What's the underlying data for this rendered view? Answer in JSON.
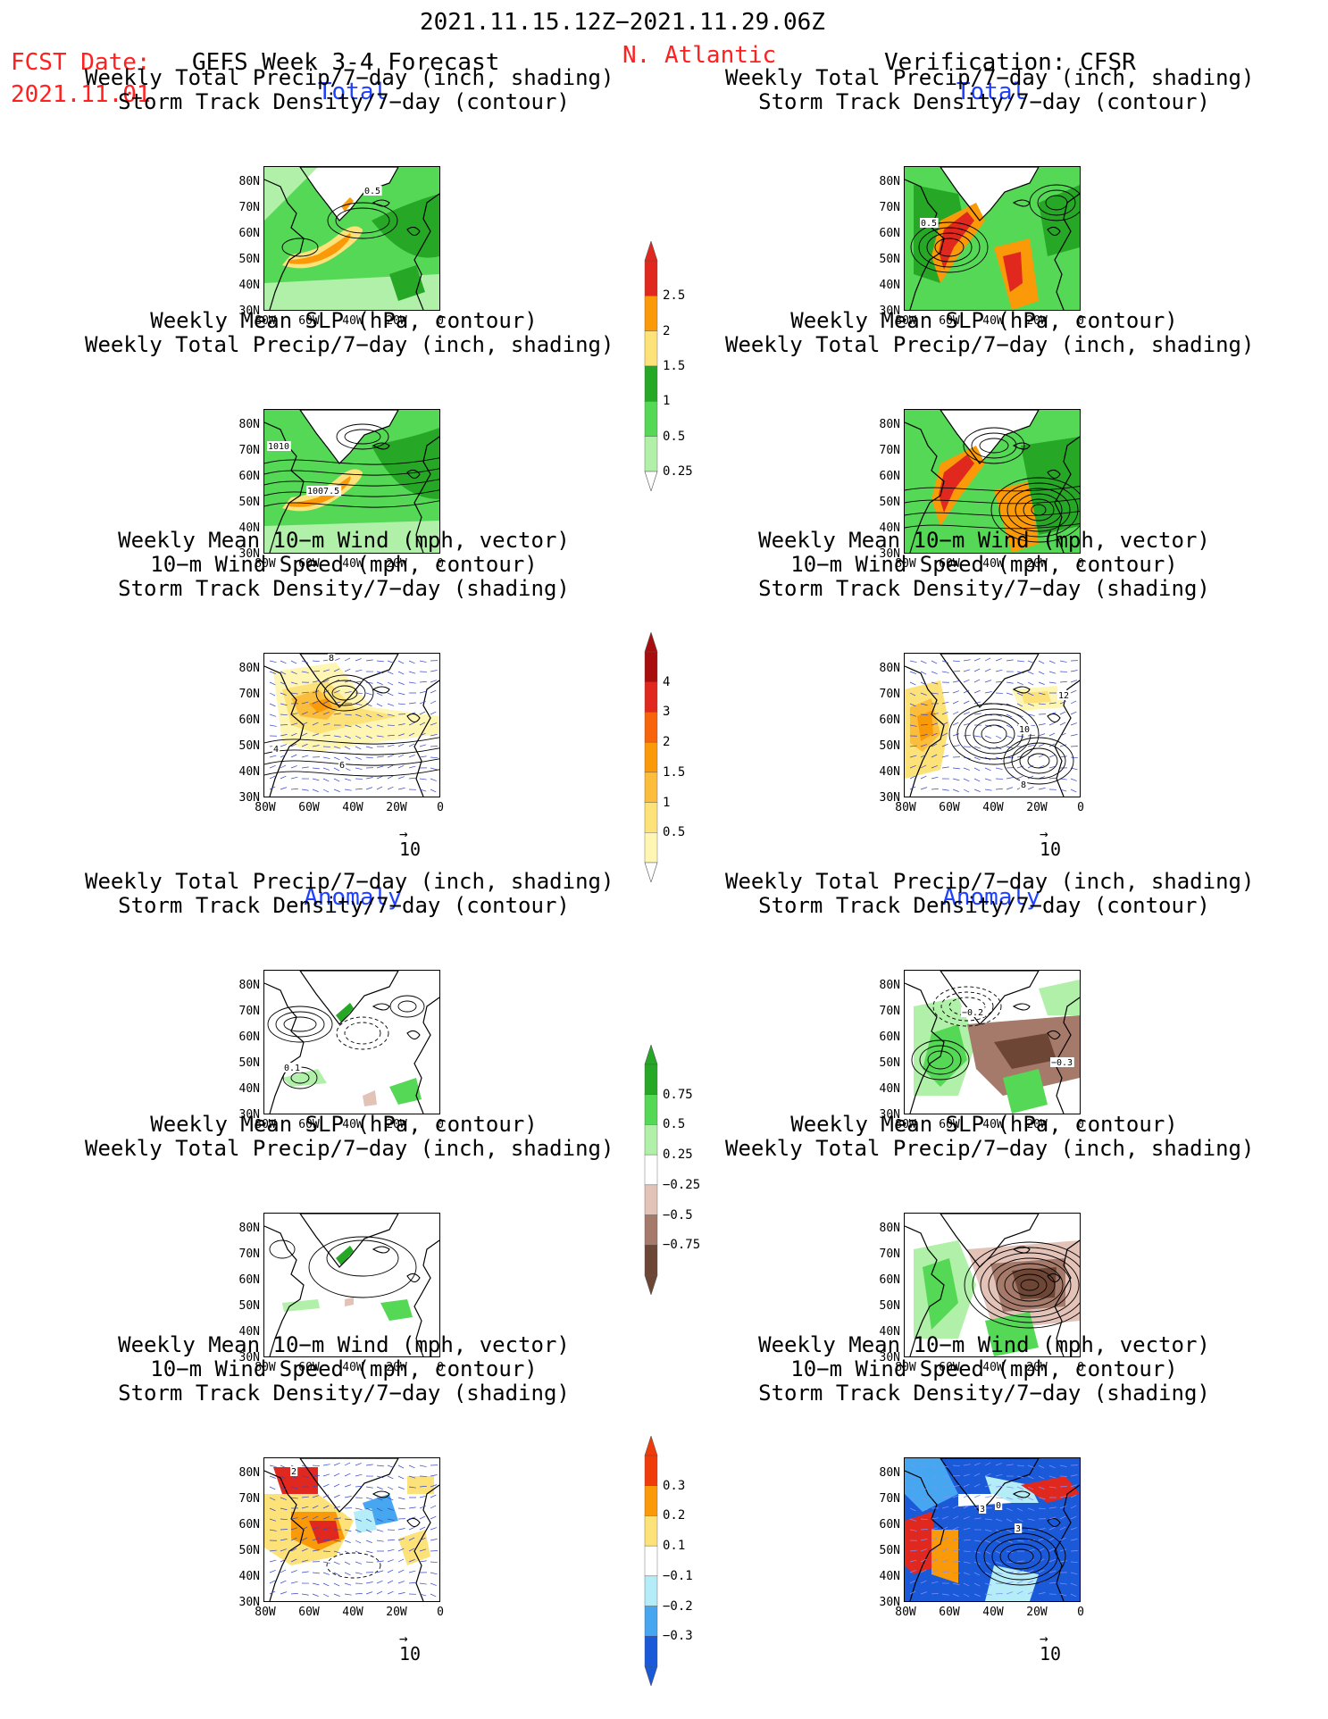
{
  "header": {
    "period": "2021.11.15.12Z−2021.11.29.06Z",
    "fcst_label": "FCST Date:",
    "fcst_date": "2021.11.01",
    "forecast_title": "GEFS Week 3-4 Forecast",
    "region": "N. Atlantic",
    "verification": "Verification: CFSR"
  },
  "sections": {
    "total": "Total",
    "anomaly": "Anomaly"
  },
  "titles": {
    "precip_track": [
      "Weekly Total Precip/7−day (inch, shading)",
      "Storm Track Density/7−day (contour)"
    ],
    "slp_precip": [
      "Weekly Mean SLP (hPa, contour)",
      "Weekly Total Precip/7−day (inch, shading)"
    ],
    "wind_track": [
      "Weekly Mean 10−m Wind (mph, vector)",
      "10−m Wind Speed (mph, contour)",
      "Storm Track Density/7−day (shading)"
    ]
  },
  "axes": {
    "lat_ticks": [
      "80N",
      "70N",
      "60N",
      "50N",
      "40N",
      "30N"
    ],
    "lon_ticks": [
      "80W",
      "60W",
      "40W",
      "20W",
      "0"
    ]
  },
  "vector_ref": "10",
  "contour_labels": {
    "fcst_total_precip": "0.5",
    "ver_total_precip": "0.5",
    "fcst_total_slp_a": "1010",
    "fcst_total_slp_b": "1007.5",
    "fcst_total_wind_a": "8",
    "fcst_total_wind_b": "6",
    "fcst_total_wind_c": "4",
    "ver_total_wind_a": "10",
    "ver_total_wind_b": "12",
    "ver_total_wind_c": "8",
    "fcst_anom_precip": "0.1",
    "ver_anom_precip_a": "−0.2",
    "ver_anom_precip_b": "−0.3",
    "fcst_anom_wind": "2",
    "ver_anom_wind_a": "3",
    "ver_anom_wind_b": "3",
    "ver_anom_wind_c": "0"
  },
  "colorbars": {
    "total_precip": {
      "labels": [
        "2.5",
        "2",
        "1.5",
        "1",
        "0.5",
        "0.25"
      ],
      "colors": [
        "#e0281e",
        "#fa9a08",
        "#fde27a",
        "#26a826",
        "#55d855",
        "#b0f0a8"
      ]
    },
    "total_track": {
      "labels": [
        "4",
        "3",
        "2",
        "1.5",
        "1",
        "0.5"
      ],
      "colors": [
        "#a80e0e",
        "#e0281e",
        "#f8640c",
        "#fa9a08",
        "#fcbd3c",
        "#fde27a",
        "#fff6b4"
      ]
    },
    "anom_precip": {
      "labels": [
        "0.75",
        "0.5",
        "0.25",
        "−0.25",
        "−0.5",
        "−0.75"
      ],
      "colors": [
        "#26a826",
        "#55d855",
        "#b0f0a8",
        "#ffffff",
        "#e3c2b8",
        "#a57a6a",
        "#6e4636"
      ]
    },
    "anom_track": {
      "labels": [
        "0.3",
        "0.2",
        "0.1",
        "−0.1",
        "−0.2",
        "−0.3"
      ],
      "colors": [
        "#f03c0a",
        "#fa9a08",
        "#fde27a",
        "#ffffff",
        "#b4ecf8",
        "#46a6f0",
        "#1a5ad8"
      ]
    }
  }
}
